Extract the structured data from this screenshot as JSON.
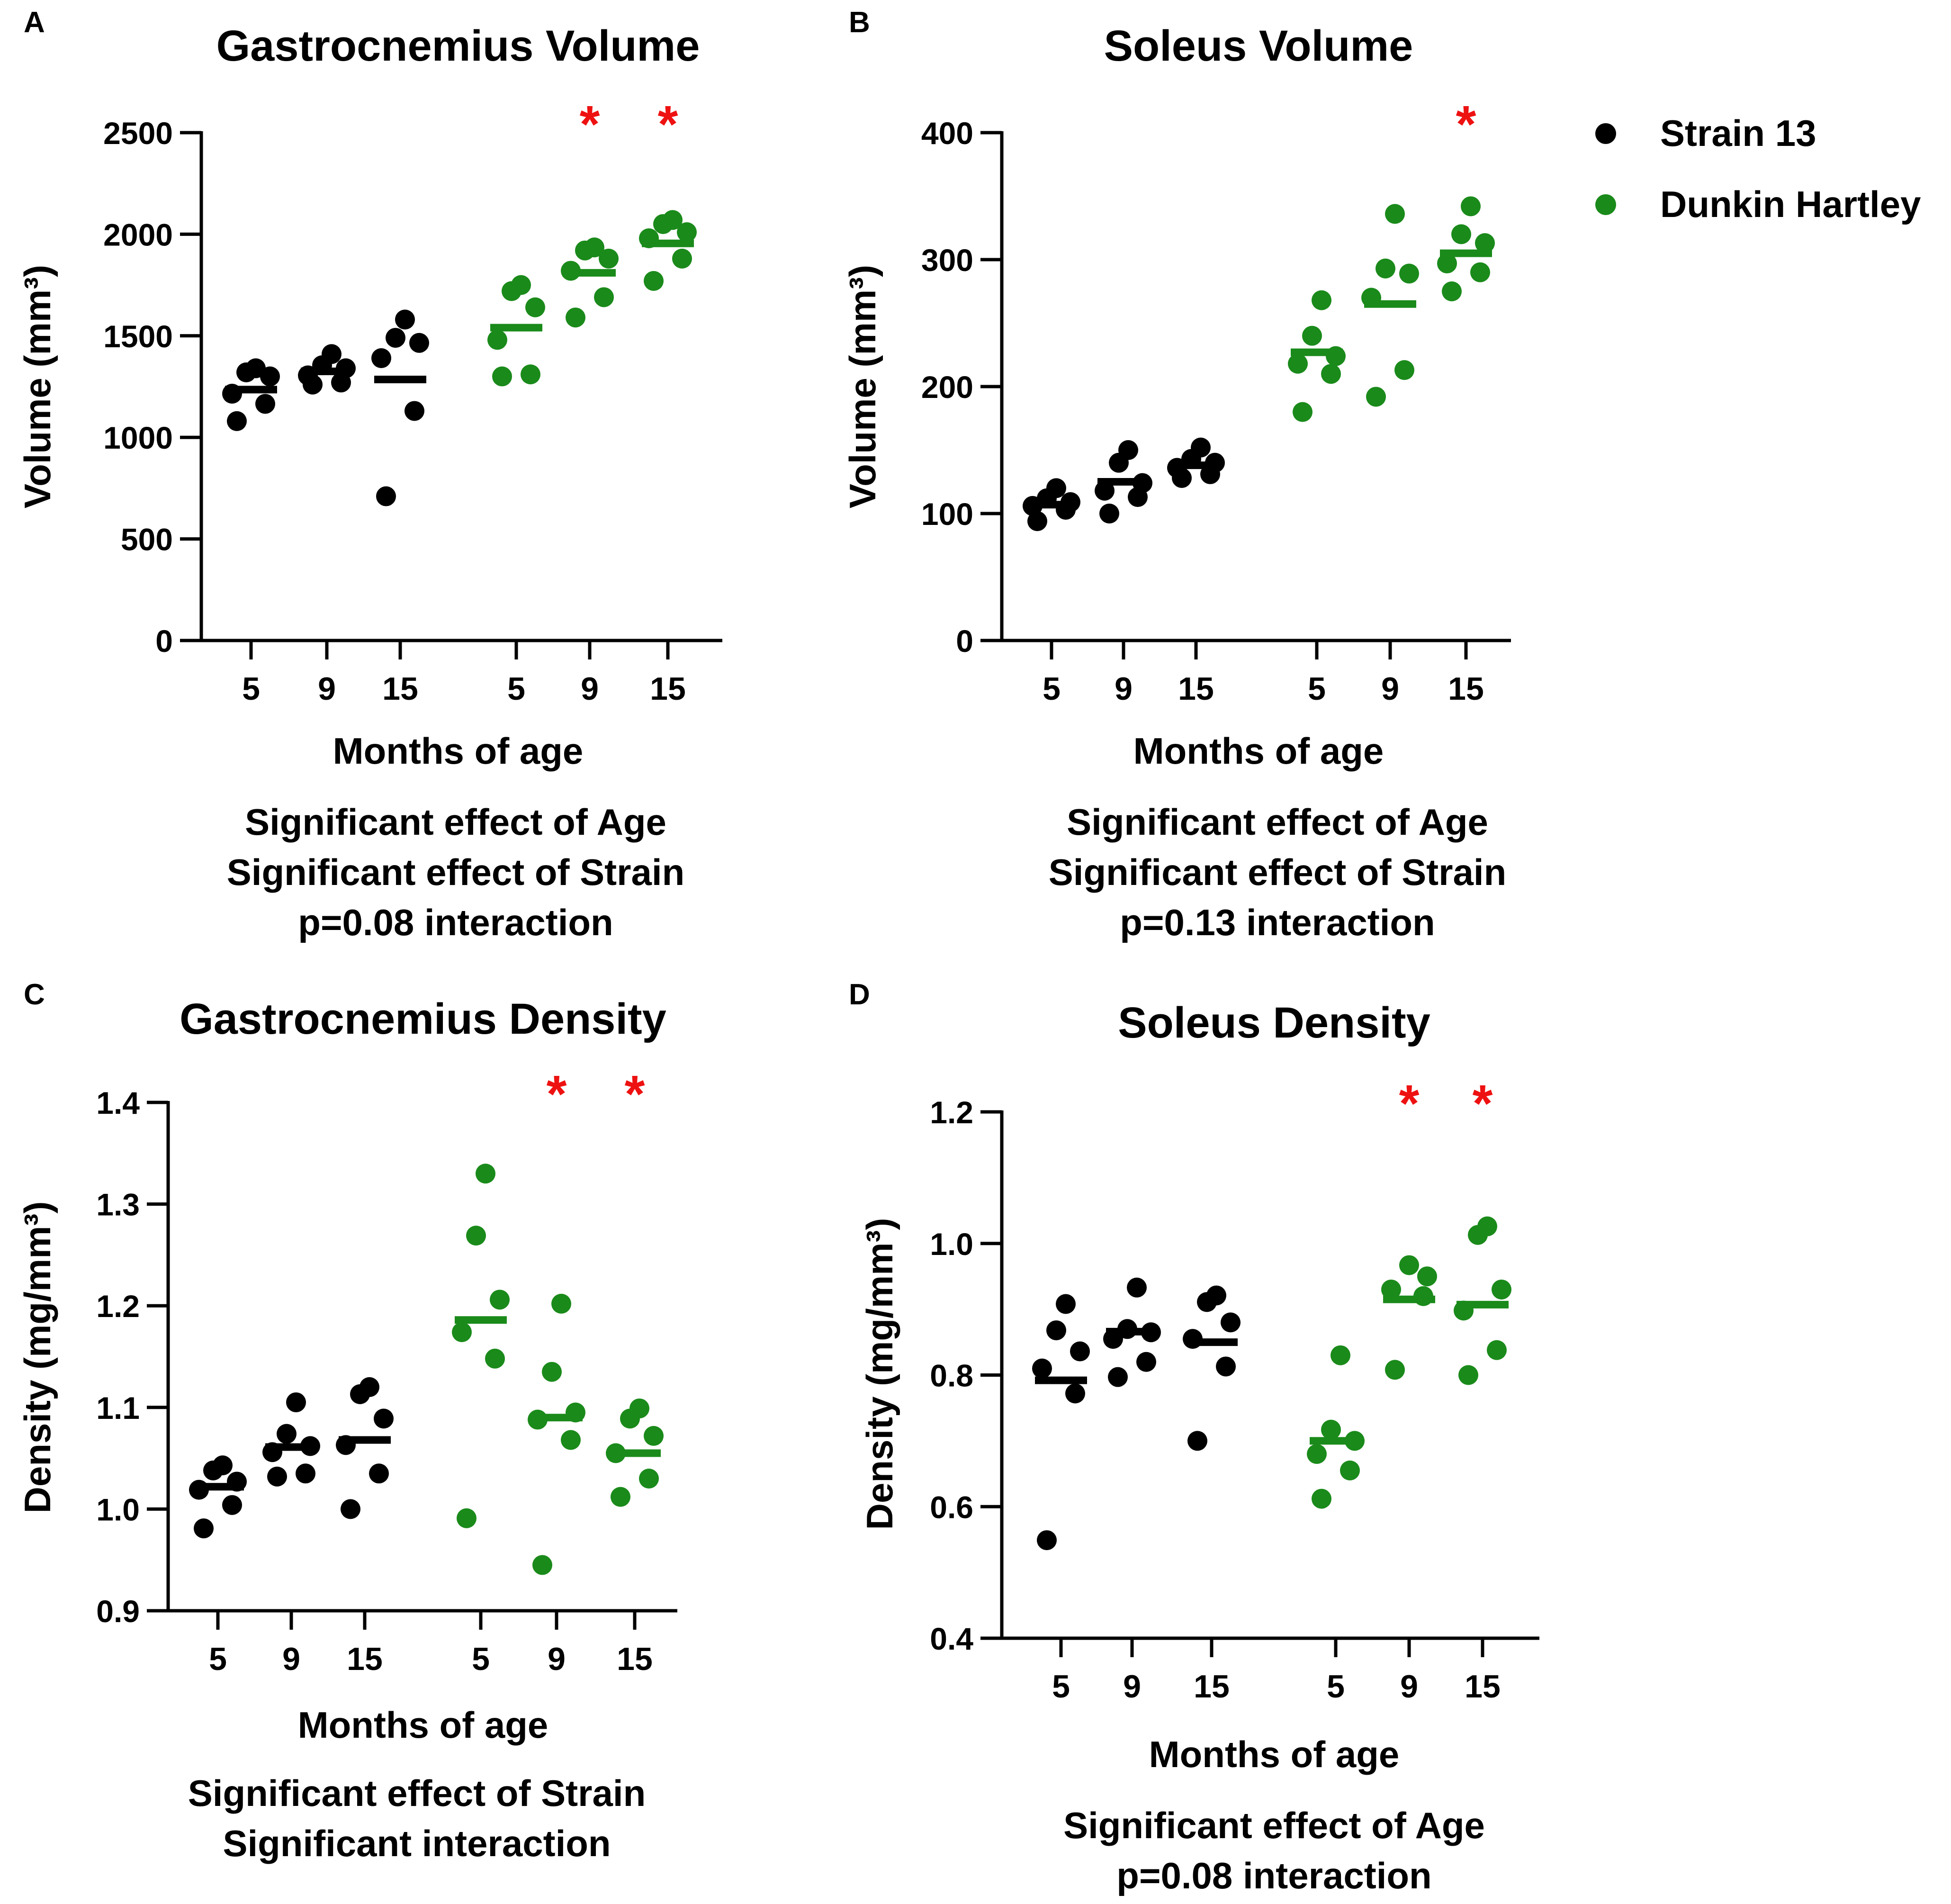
{
  "colors": {
    "strain13": "#000000",
    "dunkin": "#1a8a1a",
    "significance": "#ee1111",
    "axis": "#000000"
  },
  "legend": {
    "items": [
      {
        "label": "Strain 13",
        "color": "#000000"
      },
      {
        "label": "Dunkin Hartley",
        "color": "#1a8a1a"
      }
    ]
  },
  "chart_data": [
    {
      "panel": "A",
      "type": "scatter",
      "title": "Gastrocnemius Volume",
      "ylabel": "Volume (mm³)",
      "xlabel": "Months of age",
      "ylim": [
        0,
        2500
      ],
      "yticks": [
        0,
        500,
        1000,
        1500,
        2000,
        2500
      ],
      "ytick_labels": [
        "0",
        "500",
        "1000",
        "1500",
        "2000",
        "2500"
      ],
      "categories": [
        "5",
        "9",
        "15",
        "5",
        "9",
        "15"
      ],
      "stats": [
        "Significant effect of Age",
        "Significant effect of Strain",
        "p=0.08 interaction"
      ],
      "groups": [
        {
          "series": "Strain 13",
          "age": "5",
          "mean": 1235,
          "points": [
            1080,
            1165,
            1215,
            1300,
            1320,
            1340
          ],
          "sig": false
        },
        {
          "series": "Strain 13",
          "age": "9",
          "mean": 1325,
          "points": [
            1260,
            1270,
            1305,
            1340,
            1355,
            1410
          ],
          "sig": false
        },
        {
          "series": "Strain 13",
          "age": "15",
          "mean": 1285,
          "points": [
            710,
            1130,
            1390,
            1465,
            1490,
            1580
          ],
          "sig": false
        },
        {
          "series": "Dunkin Hartley",
          "age": "5",
          "mean": 1540,
          "points": [
            1300,
            1310,
            1480,
            1640,
            1720,
            1750
          ],
          "sig": false
        },
        {
          "series": "Dunkin Hartley",
          "age": "9",
          "mean": 1810,
          "points": [
            1590,
            1690,
            1820,
            1880,
            1920,
            1935
          ],
          "sig": true
        },
        {
          "series": "Dunkin Hartley",
          "age": "15",
          "mean": 1955,
          "points": [
            1770,
            1880,
            1980,
            2010,
            2050,
            2070
          ],
          "sig": true
        }
      ]
    },
    {
      "panel": "B",
      "type": "scatter",
      "title": "Soleus Volume",
      "ylabel": "Volume (mm³)",
      "xlabel": "Months of age",
      "ylim": [
        0,
        400
      ],
      "yticks": [
        0,
        100,
        200,
        300,
        400
      ],
      "ytick_labels": [
        "0",
        "100",
        "200",
        "300",
        "400"
      ],
      "categories": [
        "5",
        "9",
        "15",
        "5",
        "9",
        "15"
      ],
      "stats": [
        "Significant effect of Age",
        "Significant effect of Strain",
        "p=0.13 interaction"
      ],
      "groups": [
        {
          "series": "Strain 13",
          "age": "5",
          "mean": 107,
          "points": [
            94,
            103,
            106,
            109,
            112,
            120
          ],
          "sig": false
        },
        {
          "series": "Strain 13",
          "age": "9",
          "mean": 125,
          "points": [
            100,
            113,
            118,
            124,
            140,
            150
          ],
          "sig": false
        },
        {
          "series": "Strain 13",
          "age": "15",
          "mean": 138,
          "points": [
            128,
            131,
            136,
            140,
            143,
            152
          ],
          "sig": false
        },
        {
          "series": "Dunkin Hartley",
          "age": "5",
          "mean": 227,
          "points": [
            180,
            210,
            218,
            224,
            240,
            268
          ],
          "sig": false
        },
        {
          "series": "Dunkin Hartley",
          "age": "9",
          "mean": 265,
          "points": [
            192,
            213,
            270,
            289,
            293,
            336
          ],
          "sig": false
        },
        {
          "series": "Dunkin Hartley",
          "age": "15",
          "mean": 305,
          "points": [
            275,
            290,
            297,
            313,
            320,
            342
          ],
          "sig": true
        }
      ]
    },
    {
      "panel": "C",
      "type": "scatter",
      "title": "Gastrocnemius Density",
      "ylabel": "Density (mg/mm³)",
      "xlabel": "Months of age",
      "ylim": [
        0.9,
        1.4
      ],
      "yticks": [
        0.9,
        1.0,
        1.1,
        1.2,
        1.3,
        1.4
      ],
      "ytick_labels": [
        "0.9",
        "1.0",
        "1.1",
        "1.2",
        "1.3",
        "1.4"
      ],
      "categories": [
        "5",
        "9",
        "15",
        "5",
        "9",
        "15"
      ],
      "stats": [
        "Significant effect of Strain",
        "Significant interaction"
      ],
      "groups": [
        {
          "series": "Strain 13",
          "age": "5",
          "mean": 1.022,
          "points": [
            0.981,
            1.004,
            1.019,
            1.027,
            1.038,
            1.043
          ],
          "sig": false
        },
        {
          "series": "Strain 13",
          "age": "9",
          "mean": 1.061,
          "points": [
            1.032,
            1.035,
            1.056,
            1.062,
            1.074,
            1.105
          ],
          "sig": false
        },
        {
          "series": "Strain 13",
          "age": "15",
          "mean": 1.068,
          "points": [
            1.0,
            1.035,
            1.063,
            1.089,
            1.113,
            1.12
          ],
          "sig": false
        },
        {
          "series": "Dunkin Hartley",
          "age": "5",
          "mean": 1.186,
          "points": [
            0.991,
            1.148,
            1.174,
            1.206,
            1.269,
            1.33
          ],
          "sig": false
        },
        {
          "series": "Dunkin Hartley",
          "age": "9",
          "mean": 1.09,
          "points": [
            0.945,
            1.068,
            1.088,
            1.095,
            1.135,
            1.202
          ],
          "sig": true
        },
        {
          "series": "Dunkin Hartley",
          "age": "15",
          "mean": 1.055,
          "points": [
            1.012,
            1.03,
            1.055,
            1.072,
            1.089,
            1.099
          ],
          "sig": true
        }
      ]
    },
    {
      "panel": "D",
      "type": "scatter",
      "title": "Soleus Density",
      "ylabel": "Density (mg/mm³)",
      "xlabel": "Months of age",
      "ylim": [
        0.4,
        1.2
      ],
      "yticks": [
        0.4,
        0.6,
        0.8,
        1.0,
        1.2
      ],
      "ytick_labels": [
        "0.4",
        "0.6",
        "0.8",
        "1.0",
        "1.2"
      ],
      "categories": [
        "5",
        "9",
        "15",
        "5",
        "9",
        "15"
      ],
      "stats": [
        "Significant effect of Age",
        "p=0.08 interaction"
      ],
      "groups": [
        {
          "series": "Strain 13",
          "age": "5",
          "mean": 0.792,
          "points": [
            0.549,
            0.772,
            0.81,
            0.836,
            0.868,
            0.908
          ],
          "sig": false
        },
        {
          "series": "Strain 13",
          "age": "9",
          "mean": 0.866,
          "points": [
            0.797,
            0.82,
            0.855,
            0.865,
            0.87,
            0.933
          ],
          "sig": false
        },
        {
          "series": "Strain 13",
          "age": "15",
          "mean": 0.85,
          "points": [
            0.7,
            0.813,
            0.855,
            0.88,
            0.911,
            0.921
          ],
          "sig": false
        },
        {
          "series": "Dunkin Hartley",
          "age": "5",
          "mean": 0.7,
          "points": [
            0.612,
            0.655,
            0.68,
            0.7,
            0.717,
            0.83
          ],
          "sig": false
        },
        {
          "series": "Dunkin Hartley",
          "age": "9",
          "mean": 0.915,
          "points": [
            0.808,
            0.92,
            0.93,
            0.95,
            0.967
          ],
          "sig": true
        },
        {
          "series": "Dunkin Hartley",
          "age": "15",
          "mean": 0.907,
          "points": [
            0.8,
            0.838,
            0.898,
            0.93,
            1.013,
            1.026
          ],
          "sig": true
        }
      ]
    }
  ]
}
